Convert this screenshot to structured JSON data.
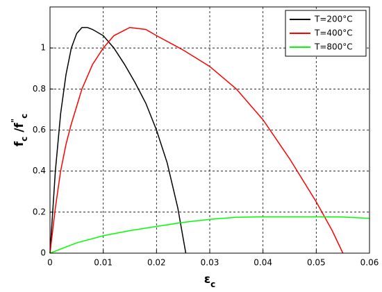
{
  "chart_data": {
    "type": "line",
    "xlabel": [
      {
        "text": "ε"
      },
      {
        "text": "c",
        "sub": true
      }
    ],
    "ylabel": [
      {
        "text": "f"
      },
      {
        "text": "c",
        "sub": true
      },
      {
        "text": " /f"
      },
      {
        "text": "\"",
        "sup": true
      },
      {
        "text": "c",
        "sub": true
      }
    ],
    "xlim": [
      0,
      0.06
    ],
    "xticks": [
      0,
      0.01,
      0.02,
      0.03,
      0.04,
      0.05,
      0.06
    ],
    "ylim": [
      0,
      1.2
    ],
    "yticks": [
      0,
      0.2,
      0.4,
      0.6,
      0.8,
      1
    ],
    "grid": true,
    "legend": "northeast",
    "series": [
      {
        "name": "T=200°C",
        "color": "#000000",
        "x": [
          0,
          0.001,
          0.002,
          0.003,
          0.004,
          0.005,
          0.006,
          0.007,
          0.008,
          0.01,
          0.012,
          0.014,
          0.016,
          0.018,
          0.02,
          0.022,
          0.024,
          0.0255
        ],
        "values": [
          0,
          0.4,
          0.68,
          0.87,
          1.0,
          1.07,
          1.1,
          1.1,
          1.09,
          1.06,
          1.0,
          0.92,
          0.83,
          0.73,
          0.6,
          0.44,
          0.22,
          0
        ]
      },
      {
        "name": "T=400°C",
        "color": "#ff0000",
        "x": [
          0,
          0.001,
          0.002,
          0.003,
          0.004,
          0.006,
          0.008,
          0.01,
          0.012,
          0.015,
          0.018,
          0.02,
          0.025,
          0.03,
          0.035,
          0.04,
          0.045,
          0.05,
          0.053,
          0.055
        ],
        "values": [
          0,
          0.22,
          0.4,
          0.53,
          0.63,
          0.8,
          0.92,
          1.0,
          1.06,
          1.1,
          1.09,
          1.06,
          0.99,
          0.91,
          0.8,
          0.65,
          0.46,
          0.25,
          0.11,
          0
        ]
      },
      {
        "name": "T=800°C",
        "color": "#00ff00",
        "x": [
          0,
          0.005,
          0.01,
          0.015,
          0.02,
          0.025,
          0.03,
          0.035,
          0.04,
          0.045,
          0.05,
          0.055,
          0.06
        ],
        "values": [
          0,
          0.05,
          0.085,
          0.11,
          0.13,
          0.15,
          0.165,
          0.175,
          0.177,
          0.177,
          0.177,
          0.176,
          0.17
        ]
      }
    ]
  }
}
